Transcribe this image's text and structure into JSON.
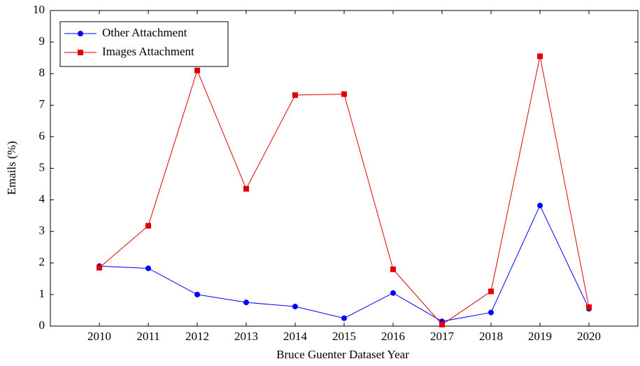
{
  "chart_data": {
    "type": "line",
    "x_label": "Bruce Guenter Dataset Year",
    "y_label": "Emails (%)",
    "x": [
      2010,
      2011,
      2012,
      2013,
      2014,
      2015,
      2016,
      2017,
      2018,
      2019,
      2020
    ],
    "xlim": [
      2009,
      2021
    ],
    "xticks": [
      2010,
      2011,
      2012,
      2013,
      2014,
      2015,
      2016,
      2017,
      2018,
      2019,
      2020
    ],
    "ylim": [
      0,
      10
    ],
    "yticks": [
      0,
      1,
      2,
      3,
      4,
      5,
      6,
      7,
      8,
      9,
      10
    ],
    "legend": "upper left",
    "series": [
      {
        "name": "Other Attachment",
        "color": "#0000ff",
        "marker": "circle",
        "values": [
          1.9,
          1.83,
          1.0,
          0.75,
          0.62,
          0.25,
          1.05,
          0.15,
          0.43,
          3.82,
          0.55
        ]
      },
      {
        "name": "Images Attachment",
        "color": "#e00000",
        "marker": "square",
        "values": [
          1.85,
          3.18,
          8.1,
          4.35,
          7.32,
          7.35,
          1.8,
          0.05,
          1.1,
          8.55,
          0.6
        ]
      }
    ]
  }
}
